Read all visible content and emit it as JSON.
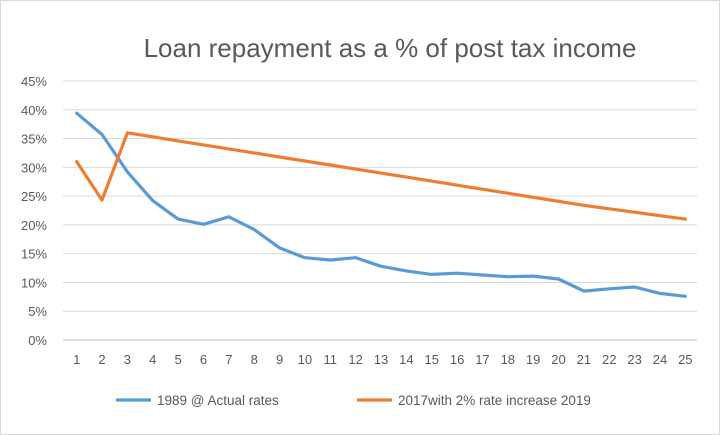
{
  "chart_data": {
    "type": "line",
    "title": "Loan repayment as a % of post tax income",
    "xlabel": "",
    "ylabel": "",
    "x": [
      1,
      2,
      3,
      4,
      5,
      6,
      7,
      8,
      9,
      10,
      11,
      12,
      13,
      14,
      15,
      16,
      17,
      18,
      19,
      20,
      21,
      22,
      23,
      24,
      25
    ],
    "ylim": [
      0,
      45
    ],
    "yticks": [
      "0%",
      "5%",
      "10%",
      "15%",
      "20%",
      "25%",
      "30%",
      "35%",
      "40%",
      "45%"
    ],
    "ytick_values": [
      0,
      5,
      10,
      15,
      20,
      25,
      30,
      35,
      40,
      45
    ],
    "grid": "horizontal",
    "legend_position": "bottom",
    "series": [
      {
        "name": "1989 @ Actual rates",
        "color": "#5b9bd5",
        "values": [
          39.4,
          35.7,
          29.2,
          24.2,
          21.0,
          20.1,
          21.4,
          19.2,
          16.0,
          14.3,
          13.9,
          14.3,
          12.8,
          12.0,
          11.4,
          11.6,
          11.3,
          11.0,
          11.1,
          10.6,
          8.5,
          8.9,
          9.2,
          8.1,
          7.6
        ]
      },
      {
        "name": "2017with 2% rate increase 2019",
        "color": "#ed7d31",
        "values": [
          31.0,
          24.3,
          36.0,
          35.3,
          34.6,
          33.9,
          33.2,
          32.5,
          31.8,
          31.1,
          30.4,
          29.7,
          29.0,
          28.3,
          27.6,
          26.9,
          26.2,
          25.5,
          24.8,
          24.1,
          23.4,
          22.8,
          22.2,
          21.6,
          21.0
        ]
      }
    ]
  }
}
